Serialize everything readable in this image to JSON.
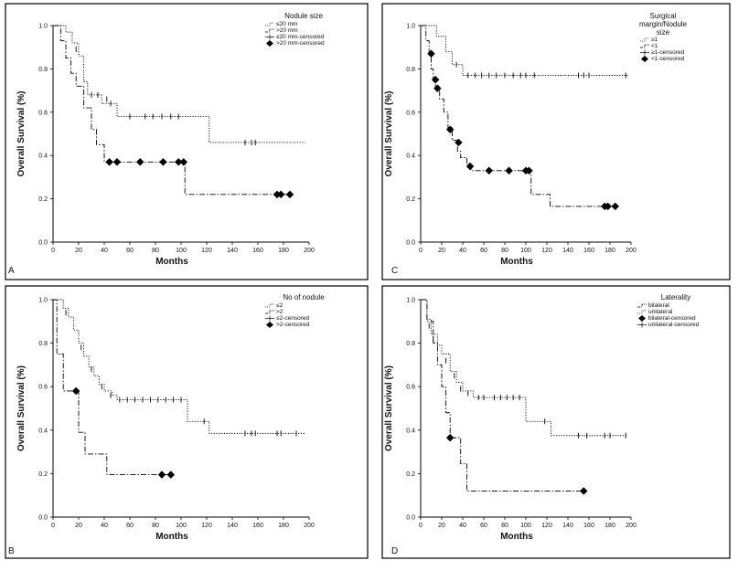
{
  "chart_data": [
    {
      "type": "line",
      "panel_label": "A",
      "xlabel": "Months",
      "ylabel": "Overall Survival (%)",
      "xlim": [
        0,
        200
      ],
      "ylim": [
        0,
        1.0
      ],
      "xticks": [
        "0",
        "20",
        "40",
        "60",
        "80",
        "100",
        "120",
        "140",
        "160",
        "180",
        "200"
      ],
      "yticks": [
        "0.0",
        "0.2",
        "0.4",
        "0.6",
        "0.8",
        "1.0"
      ],
      "legend_title": "Nodule size",
      "legend": [
        "≤20 mm",
        ">20 mm",
        "≤20 mm-censored",
        ">20 mm-censored"
      ],
      "series": [
        {
          "name": "≤20 mm",
          "style": "dotted",
          "steps": [
            [
              0,
              1.0
            ],
            [
              10,
              0.97
            ],
            [
              15,
              0.92
            ],
            [
              20,
              0.86
            ],
            [
              24,
              0.74
            ],
            [
              27,
              0.68
            ],
            [
              38,
              0.64
            ],
            [
              50,
              0.58
            ],
            [
              122,
              0.46
            ],
            [
              197,
              0.46
            ]
          ],
          "censored": [
            [
              18,
              0.89
            ],
            [
              30,
              0.68
            ],
            [
              35,
              0.68
            ],
            [
              42,
              0.66
            ],
            [
              45,
              0.64
            ],
            [
              60,
              0.58
            ],
            [
              72,
              0.58
            ],
            [
              78,
              0.58
            ],
            [
              85,
              0.58
            ],
            [
              92,
              0.58
            ],
            [
              98,
              0.58
            ],
            [
              150,
              0.46
            ],
            [
              155,
              0.46
            ],
            [
              158,
              0.46
            ]
          ]
        },
        {
          "name": ">20 mm",
          "style": "dashdot",
          "steps": [
            [
              0,
              1.0
            ],
            [
              6,
              0.93
            ],
            [
              10,
              0.85
            ],
            [
              14,
              0.78
            ],
            [
              18,
              0.72
            ],
            [
              24,
              0.62
            ],
            [
              30,
              0.52
            ],
            [
              34,
              0.45
            ],
            [
              40,
              0.37
            ],
            [
              103,
              0.22
            ],
            [
              185,
              0.22
            ]
          ],
          "censored": [
            [
              44,
              0.37
            ],
            [
              50,
              0.37
            ],
            [
              68,
              0.37
            ],
            [
              86,
              0.37
            ],
            [
              98,
              0.37
            ],
            [
              102,
              0.37
            ],
            [
              175,
              0.22
            ],
            [
              178,
              0.22
            ],
            [
              185,
              0.22
            ]
          ]
        }
      ]
    },
    {
      "type": "line",
      "panel_label": "C",
      "xlabel": "Months",
      "ylabel": "Overall Survival (%)",
      "xlim": [
        0,
        200
      ],
      "ylim": [
        0,
        1.0
      ],
      "xticks": [
        "0",
        "20",
        "40",
        "60",
        "80",
        "100",
        "120",
        "140",
        "160",
        "180",
        "200"
      ],
      "yticks": [
        "0.0",
        "0.2",
        "0.4",
        "0.6",
        "0.8",
        "1.0"
      ],
      "legend_title": "Surgical margin/Nodule size",
      "legend_title_lines": [
        "Surgical",
        "margin/Nodule",
        "size"
      ],
      "legend": [
        "≥1",
        "<1",
        "≥1-censored",
        "<1-censored"
      ],
      "series": [
        {
          "name": "≥1",
          "style": "dotted",
          "steps": [
            [
              0,
              1.0
            ],
            [
              15,
              0.95
            ],
            [
              24,
              0.88
            ],
            [
              30,
              0.82
            ],
            [
              40,
              0.77
            ],
            [
              197,
              0.77
            ]
          ],
          "censored": [
            [
              34,
              0.82
            ],
            [
              45,
              0.77
            ],
            [
              52,
              0.77
            ],
            [
              58,
              0.77
            ],
            [
              65,
              0.77
            ],
            [
              72,
              0.77
            ],
            [
              80,
              0.77
            ],
            [
              88,
              0.77
            ],
            [
              95,
              0.77
            ],
            [
              100,
              0.77
            ],
            [
              108,
              0.77
            ],
            [
              150,
              0.77
            ],
            [
              155,
              0.77
            ],
            [
              160,
              0.77
            ],
            [
              195,
              0.77
            ]
          ]
        },
        {
          "name": "<1",
          "style": "dashdot",
          "steps": [
            [
              0,
              1.0
            ],
            [
              5,
              0.93
            ],
            [
              8,
              0.87
            ],
            [
              10,
              0.8
            ],
            [
              12,
              0.75
            ],
            [
              14,
              0.72
            ],
            [
              18,
              0.66
            ],
            [
              22,
              0.6
            ],
            [
              26,
              0.53
            ],
            [
              30,
              0.47
            ],
            [
              35,
              0.42
            ],
            [
              38,
              0.39
            ],
            [
              44,
              0.36
            ],
            [
              48,
              0.33
            ],
            [
              105,
              0.22
            ],
            [
              123,
              0.165
            ],
            [
              185,
              0.165
            ]
          ],
          "censored": [
            [
              10,
              0.87
            ],
            [
              14,
              0.75
            ],
            [
              16,
              0.71
            ],
            [
              28,
              0.52
            ],
            [
              36,
              0.46
            ],
            [
              47,
              0.35
            ],
            [
              65,
              0.33
            ],
            [
              84,
              0.33
            ],
            [
              100,
              0.33
            ],
            [
              103,
              0.33
            ],
            [
              175,
              0.165
            ],
            [
              178,
              0.165
            ],
            [
              185,
              0.165
            ]
          ]
        }
      ]
    },
    {
      "type": "line",
      "panel_label": "B",
      "xlabel": "Months",
      "ylabel": "Overall Survival (%)",
      "xlim": [
        0,
        200
      ],
      "ylim": [
        0,
        1.0
      ],
      "xticks": [
        "0",
        "20",
        "40",
        "60",
        "80",
        "100",
        "120",
        "140",
        "160",
        "180",
        "200"
      ],
      "yticks": [
        "0.0",
        "0.2",
        "0.4",
        "0.6",
        "0.8",
        "1.0"
      ],
      "legend_title": "No of nodule",
      "legend": [
        "≤2",
        ">2",
        "≤2-censored",
        ">2-censored"
      ],
      "series": [
        {
          "name": "≤2",
          "style": "dotted",
          "steps": [
            [
              0,
              1.0
            ],
            [
              8,
              0.96
            ],
            [
              12,
              0.92
            ],
            [
              16,
              0.86
            ],
            [
              20,
              0.8
            ],
            [
              24,
              0.74
            ],
            [
              28,
              0.69
            ],
            [
              32,
              0.65
            ],
            [
              36,
              0.61
            ],
            [
              40,
              0.58
            ],
            [
              46,
              0.56
            ],
            [
              50,
              0.54
            ],
            [
              105,
              0.44
            ],
            [
              122,
              0.385
            ],
            [
              197,
              0.385
            ]
          ],
          "censored": [
            [
              10,
              0.94
            ],
            [
              22,
              0.78
            ],
            [
              30,
              0.68
            ],
            [
              38,
              0.6
            ],
            [
              45,
              0.56
            ],
            [
              52,
              0.54
            ],
            [
              58,
              0.54
            ],
            [
              64,
              0.54
            ],
            [
              70,
              0.54
            ],
            [
              76,
              0.54
            ],
            [
              82,
              0.54
            ],
            [
              88,
              0.54
            ],
            [
              94,
              0.54
            ],
            [
              100,
              0.54
            ],
            [
              118,
              0.44
            ],
            [
              150,
              0.385
            ],
            [
              155,
              0.385
            ],
            [
              158,
              0.385
            ],
            [
              175,
              0.385
            ],
            [
              178,
              0.385
            ],
            [
              190,
              0.385
            ]
          ]
        },
        {
          "name": ">2",
          "style": "dashdot",
          "steps": [
            [
              0,
              1.0
            ],
            [
              3,
              0.75
            ],
            [
              8,
              0.58
            ],
            [
              20,
              0.39
            ],
            [
              25,
              0.29
            ],
            [
              42,
              0.195
            ],
            [
              92,
              0.195
            ]
          ],
          "censored": [
            [
              18,
              0.58
            ],
            [
              85,
              0.195
            ],
            [
              92,
              0.195
            ]
          ]
        }
      ]
    },
    {
      "type": "line",
      "panel_label": "D",
      "xlabel": "Months",
      "ylabel": "Overall Survival (%)",
      "xlim": [
        0,
        200
      ],
      "ylim": [
        0,
        1.0
      ],
      "xticks": [
        "0",
        "20",
        "40",
        "60",
        "80",
        "100",
        "120",
        "140",
        "160",
        "180",
        "200"
      ],
      "yticks": [
        "0.0",
        "0.2",
        "0.4",
        "0.6",
        "0.8",
        "1.0"
      ],
      "legend_title": "Laterality",
      "legend": [
        "bilateral",
        "unilateral",
        "bilateral-censored",
        "unilateral-censored"
      ],
      "series": [
        {
          "name": "bilateral",
          "style": "dashdot",
          "steps": [
            [
              0,
              1.0
            ],
            [
              6,
              0.9
            ],
            [
              12,
              0.8
            ],
            [
              16,
              0.7
            ],
            [
              20,
              0.6
            ],
            [
              24,
              0.48
            ],
            [
              28,
              0.365
            ],
            [
              38,
              0.245
            ],
            [
              44,
              0.12
            ],
            [
              155,
              0.12
            ]
          ],
          "censored": [
            [
              28,
              0.365
            ],
            [
              155,
              0.12
            ]
          ]
        },
        {
          "name": "unilateral",
          "style": "dotted",
          "steps": [
            [
              0,
              1.0
            ],
            [
              6,
              0.91
            ],
            [
              10,
              0.84
            ],
            [
              16,
              0.79
            ],
            [
              20,
              0.75
            ],
            [
              28,
              0.67
            ],
            [
              34,
              0.62
            ],
            [
              40,
              0.58
            ],
            [
              50,
              0.55
            ],
            [
              100,
              0.44
            ],
            [
              124,
              0.375
            ],
            [
              197,
              0.375
            ]
          ],
          "censored": [
            [
              8,
              0.88
            ],
            [
              12,
              0.82
            ],
            [
              24,
              0.72
            ],
            [
              32,
              0.65
            ],
            [
              38,
              0.59
            ],
            [
              45,
              0.57
            ],
            [
              55,
              0.55
            ],
            [
              60,
              0.55
            ],
            [
              70,
              0.55
            ],
            [
              76,
              0.55
            ],
            [
              82,
              0.55
            ],
            [
              88,
              0.55
            ],
            [
              94,
              0.55
            ],
            [
              118,
              0.44
            ],
            [
              150,
              0.375
            ],
            [
              158,
              0.375
            ],
            [
              175,
              0.375
            ],
            [
              180,
              0.375
            ],
            [
              195,
              0.375
            ]
          ]
        }
      ]
    }
  ]
}
